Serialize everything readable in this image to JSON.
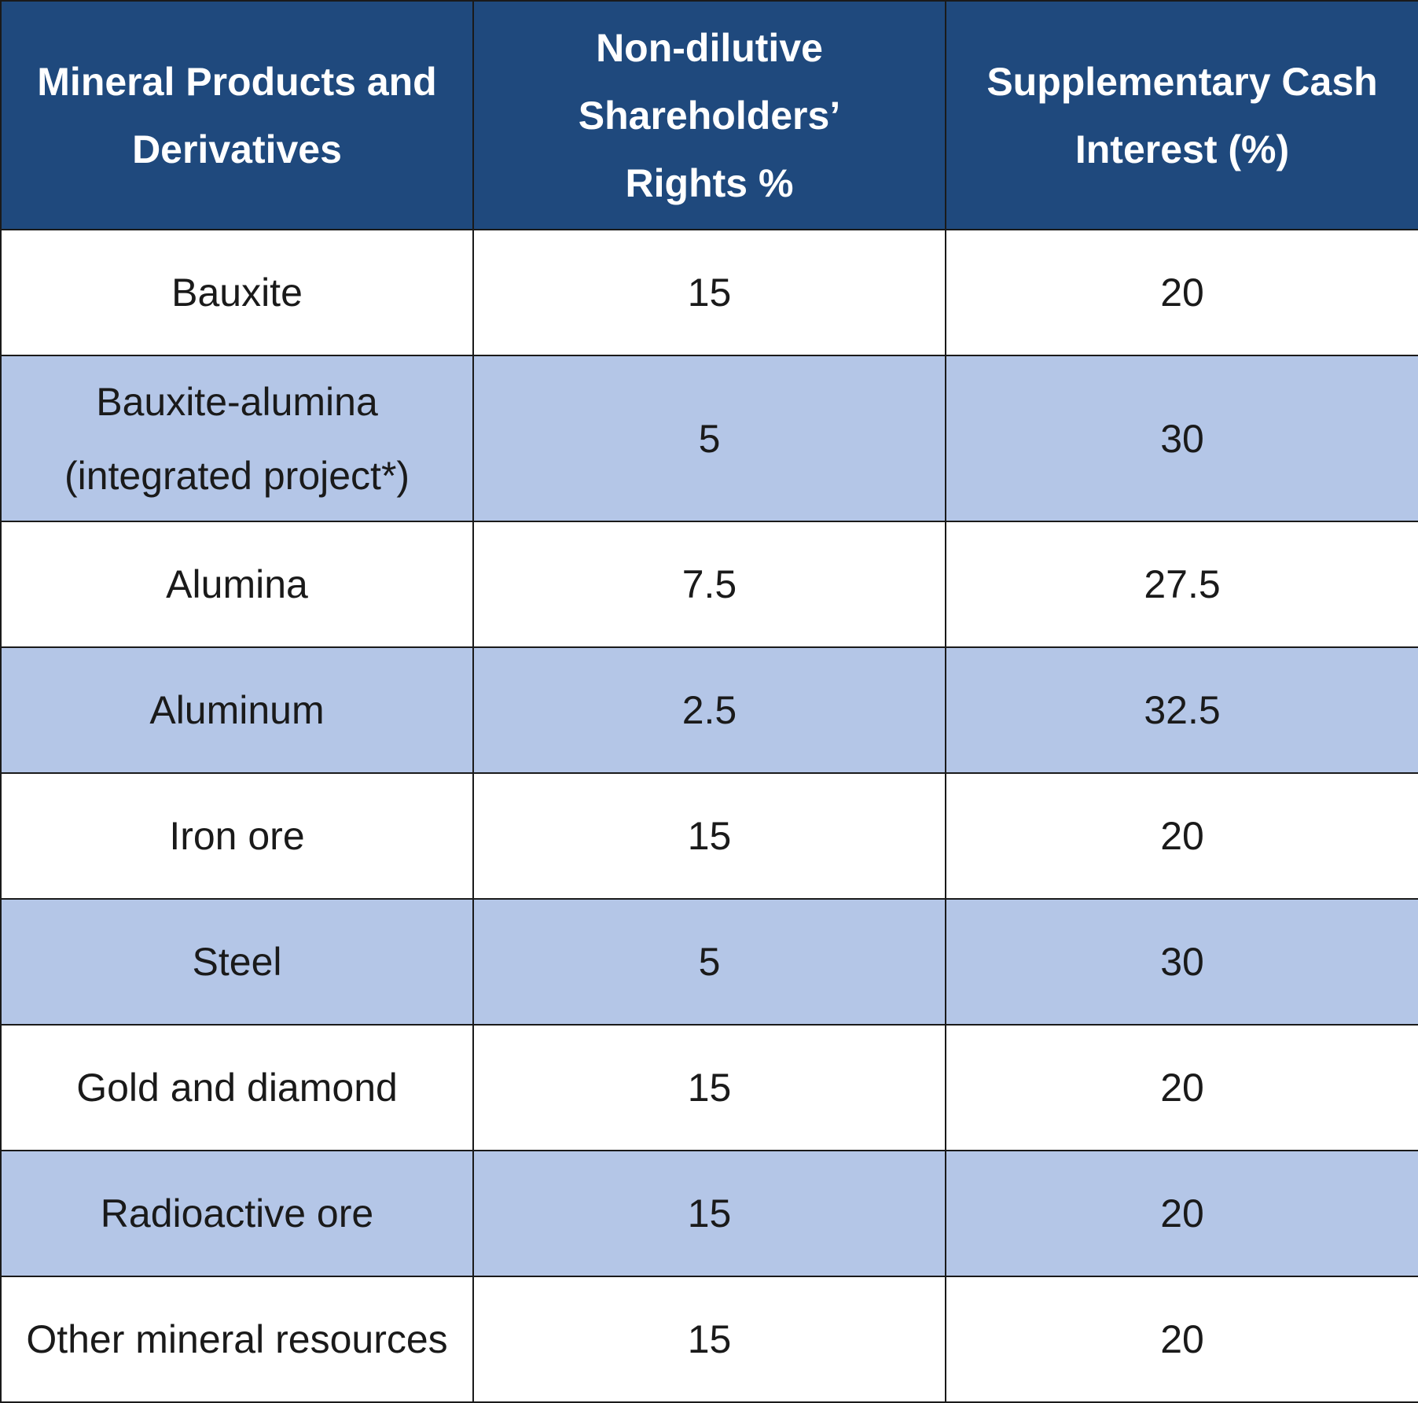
{
  "table": {
    "headers": [
      {
        "lines": [
          "Mineral Products and",
          "Derivatives"
        ]
      },
      {
        "lines": [
          "Non-dilutive",
          "Shareholders’",
          "Rights %"
        ]
      },
      {
        "lines": [
          "Supplementary Cash",
          "Interest (%)"
        ]
      }
    ],
    "colors": {
      "header_bg": "#1f497d",
      "header_text": "#ffffff",
      "row_alt_bg": "#b4c6e7",
      "row_bg": "#ffffff",
      "border": "#1a1a1a"
    },
    "rows": [
      {
        "product": [
          "Bauxite"
        ],
        "non_dilutive": "15",
        "cash_interest": "20"
      },
      {
        "product": [
          "Bauxite-alumina",
          "(integrated project*)"
        ],
        "non_dilutive": "5",
        "cash_interest": "30"
      },
      {
        "product": [
          "Alumina"
        ],
        "non_dilutive": "7.5",
        "cash_interest": "27.5"
      },
      {
        "product": [
          "Aluminum"
        ],
        "non_dilutive": "2.5",
        "cash_interest": "32.5"
      },
      {
        "product": [
          "Iron ore"
        ],
        "non_dilutive": "15",
        "cash_interest": "20"
      },
      {
        "product": [
          "Steel"
        ],
        "non_dilutive": "5",
        "cash_interest": "30"
      },
      {
        "product": [
          "Gold and diamond"
        ],
        "non_dilutive": "15",
        "cash_interest": "20"
      },
      {
        "product": [
          "Radioactive ore"
        ],
        "non_dilutive": "15",
        "cash_interest": "20"
      },
      {
        "product": [
          "Other mineral resources"
        ],
        "non_dilutive": "15",
        "cash_interest": "20"
      }
    ]
  }
}
